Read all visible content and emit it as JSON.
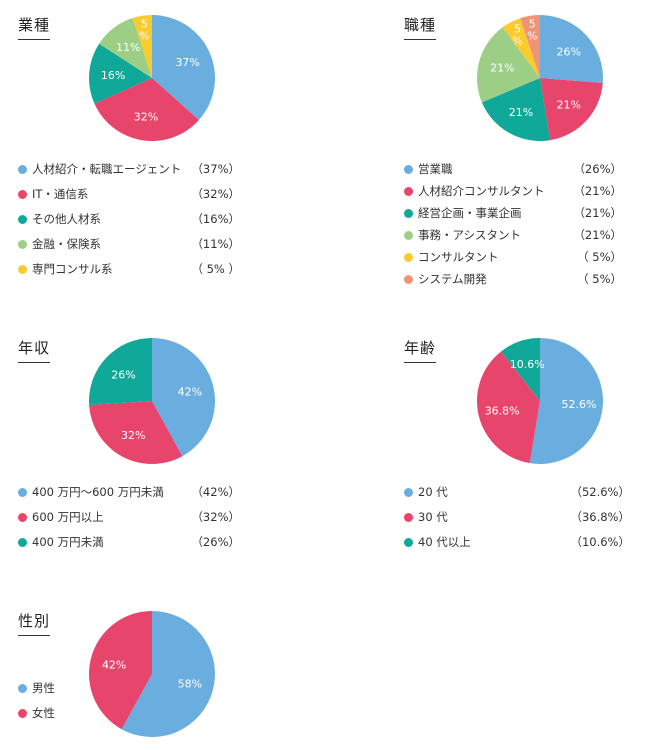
{
  "colors": {
    "blue": "#6aaee0",
    "pink": "#e8456d",
    "teal": "#10a898",
    "green": "#9ccf85",
    "yellow": "#f9cb2d",
    "salmon": "#ef9275"
  },
  "chart_data": [
    {
      "type": "pie",
      "title": "業種",
      "labels": [
        "人材紹介・転職エージェント",
        "IT・通信系",
        "その他人材系",
        "金融・保険系",
        "専門コンサル系"
      ],
      "values": [
        37,
        32,
        16,
        11,
        5
      ],
      "slice_text": [
        "37%",
        "32%",
        "16%",
        "11%",
        "5\n%"
      ],
      "legend_values": [
        "（37%）",
        "（32%）",
        "（16%）",
        "（11%）",
        "（ 5% ）"
      ],
      "colors": [
        "#6aaee0",
        "#e8456d",
        "#10a898",
        "#9ccf85",
        "#f9cb2d"
      ]
    },
    {
      "type": "pie",
      "title": "職種",
      "labels": [
        "営業職",
        "人材紹介コンサルタント",
        "経営企画・事業企画",
        "事務・アシスタント",
        "コンサルタント",
        "システム開発"
      ],
      "values": [
        26,
        21,
        21,
        21,
        5,
        5
      ],
      "slice_text": [
        "26%",
        "21%",
        "21%",
        "21%",
        "5\n%",
        "5\n%"
      ],
      "legend_values": [
        "（26%）",
        "（21%）",
        "（21%）",
        "（21%）",
        "（ 5%）",
        "（ 5%）"
      ],
      "colors": [
        "#6aaee0",
        "#e8456d",
        "#10a898",
        "#9ccf85",
        "#f9cb2d",
        "#ef9275"
      ]
    },
    {
      "type": "pie",
      "title": "年収",
      "labels": [
        "400 万円〜600 万円未満",
        "600 万円以上",
        "400 万円未満"
      ],
      "values": [
        42,
        32,
        26
      ],
      "slice_text": [
        "42%",
        "32%",
        "26%"
      ],
      "legend_values": [
        "（42%）",
        "（32%）",
        "（26%）"
      ],
      "colors": [
        "#6aaee0",
        "#e8456d",
        "#10a898"
      ]
    },
    {
      "type": "pie",
      "title": "年齢",
      "labels": [
        "20 代",
        "30 代",
        "40 代以上"
      ],
      "values": [
        52.6,
        36.8,
        10.6
      ],
      "slice_text": [
        "52.6%",
        "36.8%",
        "10.6%"
      ],
      "legend_values": [
        "（52.6%）",
        "（36.8%）",
        "（10.6%）"
      ],
      "colors": [
        "#6aaee0",
        "#e8456d",
        "#10a898"
      ]
    },
    {
      "type": "pie",
      "title": "性別",
      "labels": [
        "男性",
        "女性"
      ],
      "values": [
        58,
        42
      ],
      "slice_text": [
        "58%",
        "42%"
      ],
      "legend_values": [
        "",
        ""
      ],
      "colors": [
        "#6aaee0",
        "#e8456d"
      ]
    }
  ]
}
